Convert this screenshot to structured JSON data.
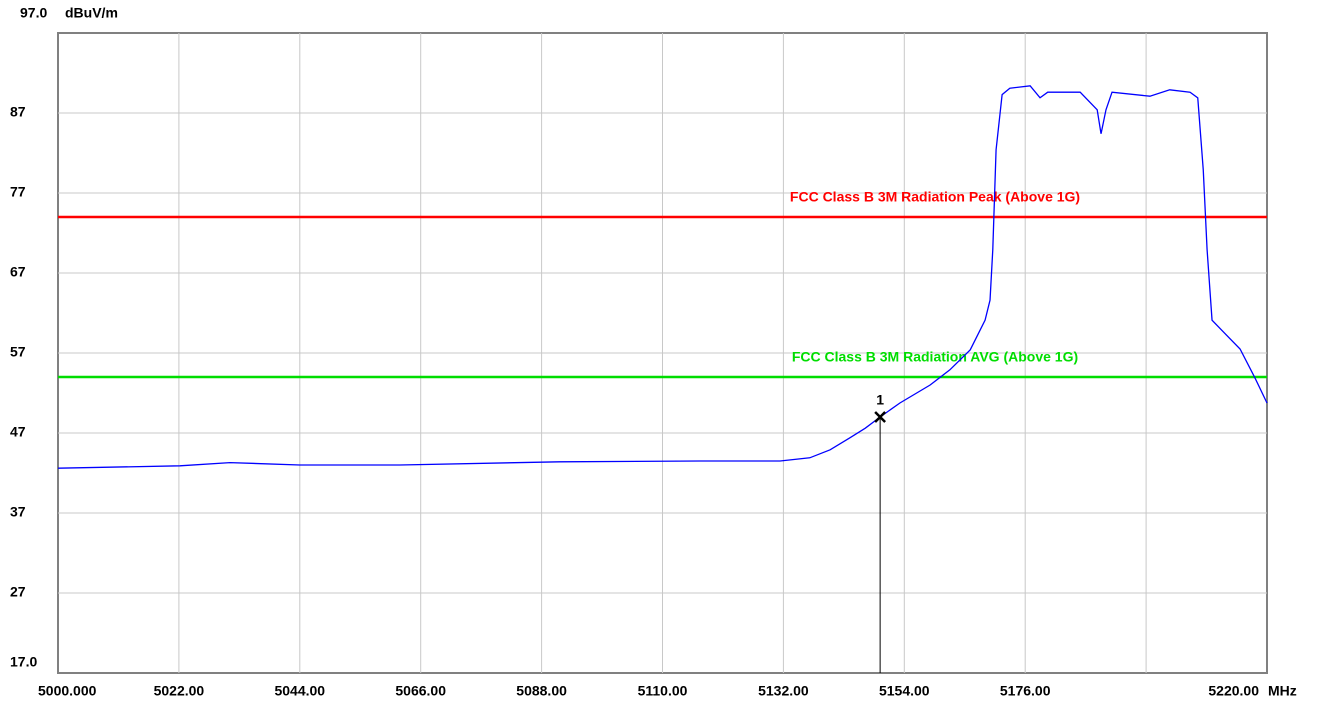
{
  "chart_data": {
    "type": "line",
    "y_unit": "dBuV/m",
    "x_unit": "MHz",
    "xlim": [
      5000,
      5220
    ],
    "ylim": [
      17,
      97
    ],
    "yticks": [
      {
        "value": 97,
        "label": "97.0"
      },
      87,
      77,
      67,
      57,
      47,
      37,
      27,
      {
        "value": 17,
        "label": "17.0"
      }
    ],
    "xticks": [
      {
        "value": 5000,
        "label": "5000.000"
      },
      {
        "value": 5022,
        "label": "5022.00"
      },
      {
        "value": 5044,
        "label": "5044.00"
      },
      {
        "value": 5066,
        "label": "5066.00"
      },
      {
        "value": 5088,
        "label": "5088.00"
      },
      {
        "value": 5110,
        "label": "5110.00"
      },
      {
        "value": 5132,
        "label": "5132.00"
      },
      {
        "value": 5154,
        "label": "5154.00"
      },
      {
        "value": 5176,
        "label": "5176.00"
      },
      {
        "value": 5198,
        "label": null
      },
      {
        "value": 5220,
        "label": "5220.00"
      }
    ],
    "grid": true,
    "x": [
      5000,
      5022.2,
      5031.3,
      5044.0,
      5062.2,
      5091.3,
      5116.8,
      5131.4,
      5136.8,
      5140.5,
      5144.1,
      5146.9,
      5149.6,
      5153.2,
      5158.7,
      5162.3,
      5166.0,
      5168.7,
      5169.6,
      5170.1,
      5170.7,
      5171.8,
      5173.2,
      5176.9,
      5178.7,
      5180.1,
      5186.0,
      5189.1,
      5189.8,
      5190.7,
      5191.8,
      5198.7,
      5202.3,
      5206.0,
      5207.4,
      5208.4,
      5209.1,
      5210.0,
      5212.4,
      5215.1,
      5217.8,
      5220.0
    ],
    "series": [
      {
        "color": "#0000ff",
        "values": [
          42.6,
          42.9,
          43.3,
          43.0,
          43.0,
          43.4,
          43.5,
          43.5,
          43.9,
          44.9,
          46.4,
          47.6,
          49.0,
          50.75,
          53.0,
          54.9,
          57.4,
          61.1,
          63.6,
          69.9,
          82.4,
          89.3,
          90.1,
          90.4,
          88.9,
          89.6,
          89.6,
          87.4,
          84.4,
          87.4,
          89.6,
          89.1,
          89.9,
          89.6,
          88.9,
          79.9,
          69.9,
          61.1,
          59.4,
          57.5,
          53.9,
          50.75
        ]
      }
    ],
    "limits": [
      {
        "name": "FCC Class B 3M Radiation Peak (Above 1G)",
        "color": "#ff0000",
        "value": 74
      },
      {
        "name": "FCC Class B 3M Radiation AVG (Above 1G)",
        "color": "#00dd00",
        "value": 54
      }
    ],
    "markers": [
      {
        "label": "1",
        "x": 5149.6,
        "y": 49.0
      }
    ]
  }
}
